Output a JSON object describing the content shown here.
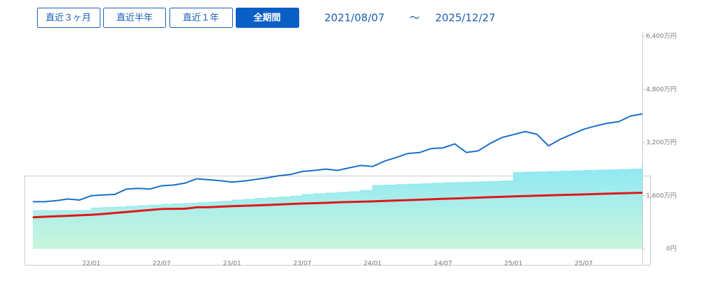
{
  "controls": {
    "buttons": [
      "直近３ヶ月",
      "直近半年",
      "直近１年",
      "全期間"
    ],
    "date_from": "2021/08/07",
    "separator": "～",
    "date_to": "2025/12/27"
  },
  "chart_data": {
    "type": "line",
    "categories": [
      null,
      null,
      null,
      null,
      null,
      "22/01",
      null,
      null,
      null,
      null,
      null,
      "22/07",
      null,
      null,
      null,
      null,
      null,
      "23/01",
      null,
      null,
      null,
      null,
      null,
      "23/07",
      null,
      null,
      null,
      null,
      null,
      "24/01",
      null,
      null,
      null,
      null,
      null,
      "24/07",
      null,
      null,
      null,
      null,
      null,
      "25/01",
      null,
      null,
      null,
      null,
      null,
      "25/07",
      null,
      null,
      null,
      null,
      null
    ],
    "series": [
      {
        "style": "area",
        "color": "#8ee8f5",
        "values": [
          1150,
          1150,
          1150,
          1150,
          1150,
          1230,
          1245,
          1260,
          1280,
          1300,
          1320,
          1340,
          1355,
          1370,
          1390,
          1410,
          1430,
          1470,
          1490,
          1520,
          1540,
          1560,
          1590,
          1640,
          1660,
          1680,
          1700,
          1720,
          1760,
          1910,
          1920,
          1935,
          1950,
          1960,
          1975,
          1990,
          2000,
          2010,
          2020,
          2030,
          2045,
          2300,
          2310,
          2320,
          2330,
          2340,
          2350,
          2360,
          2370,
          2380,
          2390,
          2400,
          2540
        ]
      },
      {
        "style": "line",
        "color": "#1a6fc9",
        "values": [
          1420,
          1420,
          1450,
          1500,
          1470,
          1600,
          1620,
          1640,
          1800,
          1820,
          1800,
          1900,
          1920,
          1980,
          2110,
          2080,
          2050,
          2010,
          2040,
          2090,
          2140,
          2200,
          2240,
          2330,
          2360,
          2400,
          2360,
          2440,
          2510,
          2480,
          2640,
          2750,
          2870,
          2900,
          3020,
          3040,
          3160,
          2900,
          2950,
          3170,
          3350,
          3440,
          3530,
          3450,
          3100,
          3300,
          3450,
          3600,
          3700,
          3780,
          3830,
          4000,
          4060
        ]
      },
      {
        "style": "line",
        "color": "#e0161b",
        "values": [
          950,
          965,
          980,
          995,
          1010,
          1025,
          1050,
          1080,
          1110,
          1140,
          1170,
          1200,
          1205,
          1210,
          1250,
          1255,
          1270,
          1285,
          1295,
          1305,
          1320,
          1335,
          1350,
          1365,
          1375,
          1385,
          1400,
          1410,
          1420,
          1430,
          1442,
          1455,
          1467,
          1480,
          1492,
          1505,
          1517,
          1530,
          1542,
          1555,
          1567,
          1580,
          1590,
          1600,
          1610,
          1620,
          1630,
          1640,
          1650,
          1660,
          1670,
          1680,
          1690
        ]
      }
    ],
    "ylim": [
      0,
      6400
    ],
    "yticks": [
      {
        "value": 0,
        "label": "0円"
      },
      {
        "value": 1600,
        "label": "1,600万円"
      },
      {
        "value": 3200,
        "label": "3,200万円"
      },
      {
        "value": 4800,
        "label": "4,800万円"
      },
      {
        "value": 6400,
        "label": "6,400万円"
      }
    ]
  }
}
